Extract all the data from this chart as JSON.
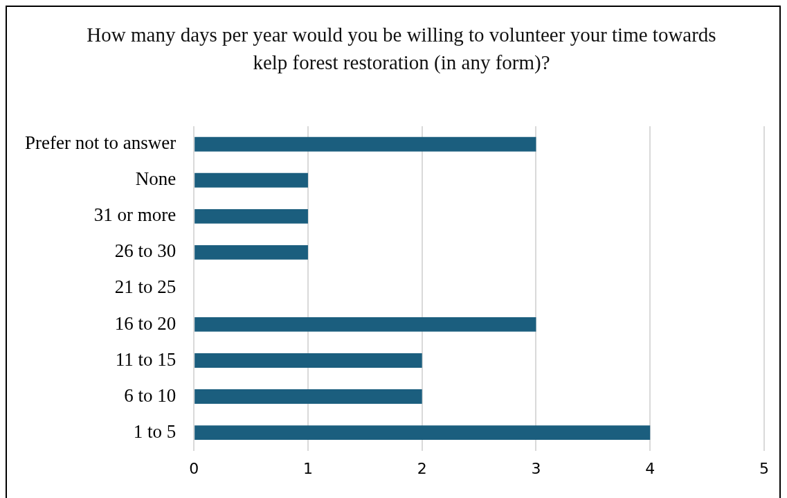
{
  "chart_data": {
    "type": "bar",
    "orientation": "horizontal",
    "title": "How many days per year would you be willing to volunteer your time towards kelp forest restoration (in any form)?",
    "categories": [
      "Prefer not to answer",
      "None",
      "31 or more",
      "26 to 30",
      "21 to 25",
      "16 to 20",
      "11 to 15",
      "6 to 10",
      "1 to 5"
    ],
    "values": [
      3,
      1,
      1,
      1,
      0,
      3,
      2,
      2,
      4
    ],
    "color": "#1b5e7e",
    "xlim": [
      0,
      5
    ],
    "xticks": [
      0,
      1,
      2,
      3,
      4,
      5
    ],
    "grid": "x",
    "legend": false
  }
}
